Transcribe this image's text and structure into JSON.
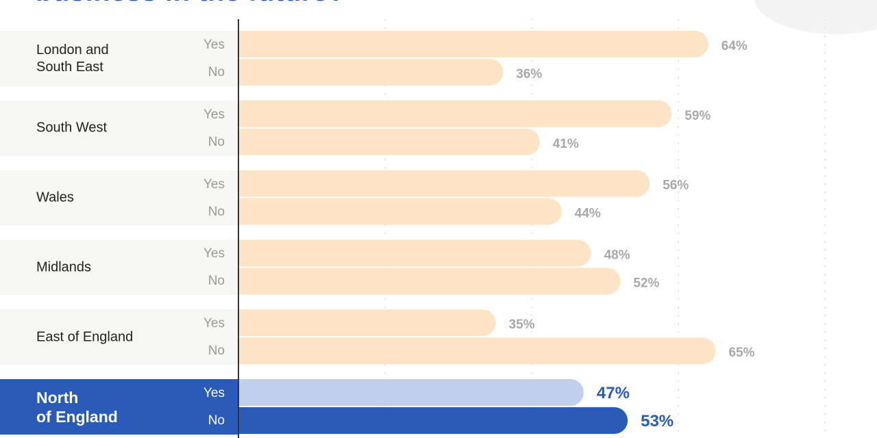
{
  "title": "business in the future?",
  "chart_data": {
    "type": "bar",
    "categories": [
      "London and South East",
      "South West",
      "Wales",
      "Midlands",
      "East of England",
      "North of England"
    ],
    "series": [
      {
        "name": "Yes",
        "values": [
          64,
          59,
          56,
          48,
          35,
          47
        ]
      },
      {
        "name": "No",
        "values": [
          36,
          41,
          44,
          52,
          65,
          53
        ]
      }
    ],
    "value_labels": {
      "yes": [
        "64%",
        "59%",
        "56%",
        "48%",
        "35%",
        "47%"
      ],
      "no": [
        "36%",
        "41%",
        "44%",
        "52%",
        "65%",
        "53%"
      ]
    },
    "highlight_index": 5,
    "answer_labels": {
      "yes": "Yes",
      "no": "No"
    },
    "grid": true,
    "colors": {
      "bar": "#fde4c6",
      "highlight_yes": "#c0d0ec",
      "highlight_no": "#2a5bb8",
      "label": "#a9a9a9",
      "highlight_label": "#2a5bb8",
      "band": "#f6f6f4",
      "highlight_band": "#2a5bb8"
    }
  },
  "regions": [
    {
      "name": "London and\nSouth East"
    },
    {
      "name": "South West"
    },
    {
      "name": "Wales"
    },
    {
      "name": "Midlands"
    },
    {
      "name": "East of England"
    },
    {
      "name": "North\nof England"
    }
  ]
}
